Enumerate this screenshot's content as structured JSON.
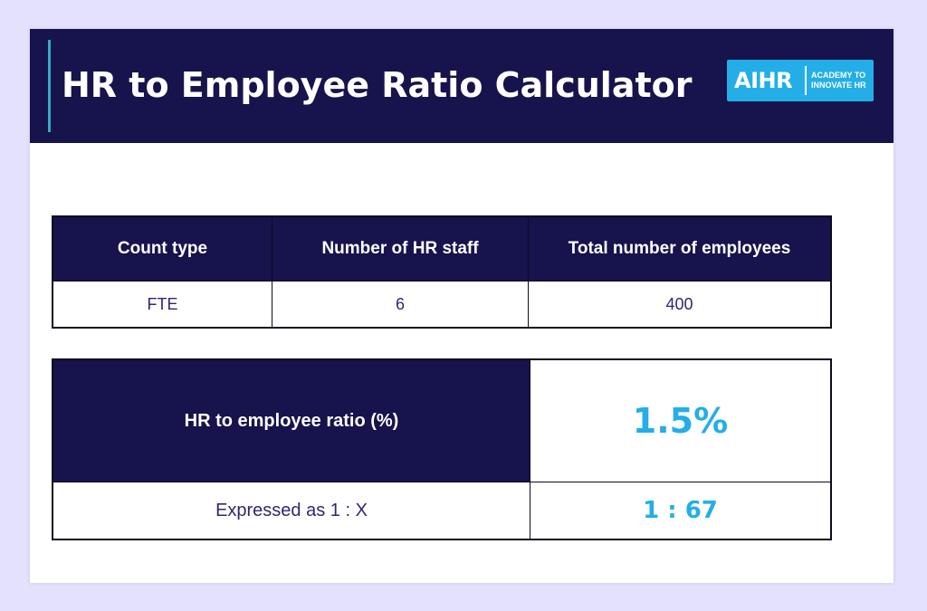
{
  "header": {
    "title": "HR to Employee Ratio Calculator",
    "logo": {
      "wordmark": "AIHR",
      "tagline": "ACADEMY TO INNOVATE HR",
      "color": "#24aee8"
    },
    "background_color": "#17134c"
  },
  "input_table": {
    "columns": [
      "Count type",
      "Number of HR staff",
      "Total number of employees"
    ],
    "rows": [
      [
        "FTE",
        "6",
        "400"
      ]
    ]
  },
  "result_table": {
    "ratio_label": "HR to employee ratio (%)",
    "ratio_value": "1.5%",
    "expressed_label": "Expressed as 1 : X",
    "expressed_value": "1 : 67"
  },
  "colors": {
    "page_background": "#e3e1fb",
    "header_navy": "#17134c",
    "accent_blue": "#24aee8",
    "body_text": "#2e2870"
  }
}
